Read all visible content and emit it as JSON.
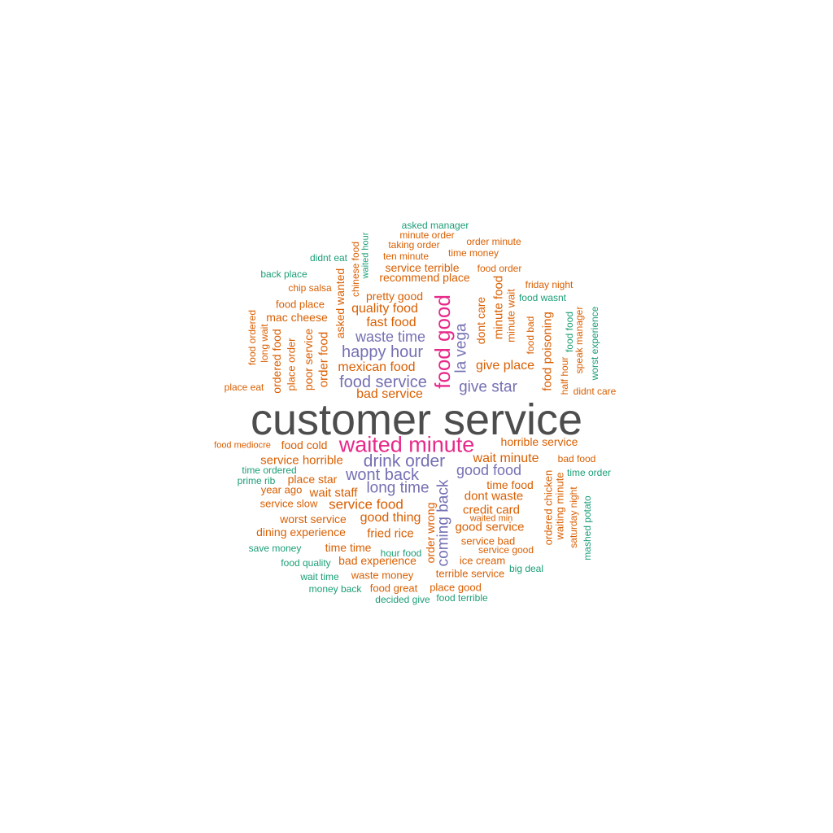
{
  "colors": {
    "grey": "#4d4d4d",
    "magenta": "#e7298a",
    "purple": "#7570b3",
    "orange": "#d95f02",
    "teal": "#1b9e77",
    "background": "#ffffff"
  },
  "words": {
    "asked_manager": "asked manager",
    "minute_order": "minute order",
    "taking_order": "taking order",
    "order_minute": "order minute",
    "ten_minute": "ten minute",
    "time_money": "time money",
    "didnt_eat": "didnt eat",
    "waited_hour": "waited hour",
    "chinese_food": "chinese food",
    "service_terrible": "service terrible",
    "food_order": "food order",
    "back_place": "back place",
    "recommend_place": "recommend place",
    "chip_salsa": "chip salsa",
    "asked_wanted": "asked wanted",
    "friday_night": "friday night",
    "pretty_good": "pretty good",
    "food_good": "food good",
    "food_wasnt": "food wasnt",
    "food_place": "food place",
    "quality_food": "quality food",
    "minute_food": "minute food",
    "minute_wait": "minute wait",
    "dont_care": "dont care",
    "mac_cheese": "mac cheese",
    "fast_food": "fast food",
    "food_ordered": "food ordered",
    "long_wait": "long wait",
    "ordered_food": "ordered food",
    "place_order": "place order",
    "poor_service": "poor service",
    "order_food": "order food",
    "waste_time": "waste time",
    "la_vega": "la vega",
    "food_bad": "food bad",
    "food_poisoning": "food poisoning",
    "food_food": "food food",
    "speak_manager": "speak manager",
    "worst_experience": "worst experience",
    "happy_hour": "happy hour",
    "give_place": "give place",
    "mexican_food": "mexican food",
    "half_hour": "half hour",
    "food_service": "food service",
    "give_star": "give star",
    "place_eat": "place eat",
    "bad_service": "bad service",
    "didnt_care": "didnt care",
    "customer_service": "customer service",
    "horrible_service": "horrible service",
    "food_mediocre": "food mediocre",
    "food_cold": "food cold",
    "waited_minute": "waited minute",
    "service_horrible": "service horrible",
    "drink_order": "drink order",
    "wait_minute": "wait minute",
    "bad_food": "bad food",
    "time_ordered": "time ordered",
    "good_food": "good food",
    "time_order": "time order",
    "wont_back": "wont back",
    "ordered_chicken": "ordered chicken",
    "prime_rib": "prime rib",
    "place_star": "place star",
    "year_ago": "year ago",
    "long_time": "long time",
    "time_food": "time food",
    "waiting_minute": "waiting minute",
    "wait_staff": "wait staff",
    "coming_back": "coming back",
    "dont_waste": "dont waste",
    "saturday_night": "saturday night",
    "service_slow": "service slow",
    "service_food": "service food",
    "mashed_potato": "mashed potato",
    "credit_card": "credit card",
    "worst_service": "worst service",
    "good_thing": "good thing",
    "waited_min": "waited min",
    "order_wrong": "order wrong",
    "dining_experience": "dining experience",
    "good_service": "good service",
    "fried_rice": "fried rice",
    "service_bad": "service bad",
    "save_money": "save money",
    "time_time": "time time",
    "service_good": "service good",
    "hour_food": "hour food",
    "food_quality": "food quality",
    "bad_experience": "bad experience",
    "ice_cream": "ice cream",
    "big_deal": "big deal",
    "wait_time": "wait time",
    "waste_money": "waste money",
    "terrible_service": "terrible service",
    "money_back": "money back",
    "food_great": "food great",
    "place_good": "place good",
    "decided_give": "decided give",
    "food_terrible": "food terrible"
  }
}
